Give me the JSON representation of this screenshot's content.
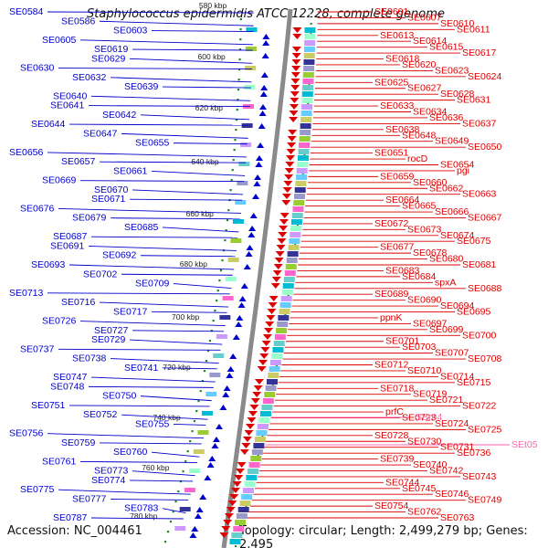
{
  "title": "Staphylococcus epidermidis ATCC 12228, complete genome",
  "accession": "Accession: NC_004461",
  "summary": "Topology: circular; Length: 2,499,279 bp; Genes: 2,495",
  "kbp_labels": [
    "580 kbp",
    "600 kbp",
    "620 kbp",
    "640 kbp",
    "660 kbp",
    "680 kbp",
    "700 kbp",
    "720 kbp",
    "740 kbp",
    "760 kbp",
    "780 kbp"
  ],
  "left_labels": [
    "SE0584",
    "SE0586",
    "SE0603",
    "SE0605",
    "SE0619",
    "SE0629",
    "SE0630",
    "SE0632",
    "SE0639",
    "SE0640",
    "SE0641",
    "SE0642",
    "SE0644",
    "SE0647",
    "SE0655",
    "SE0656",
    "SE0657",
    "SE0661",
    "SE0669",
    "SE0670",
    "SE0671",
    "SE0676",
    "SE0679",
    "SE0685",
    "SE0687",
    "SE0691",
    "SE0692",
    "SE0693",
    "SE0702",
    "SE0709",
    "SE0713",
    "SE0716",
    "SE0717",
    "SE0726",
    "SE0727",
    "SE0729",
    "SE0737",
    "SE0738",
    "SE0741",
    "SE0747",
    "SE0748",
    "SE0750",
    "SE0751",
    "SE0752",
    "SE0755",
    "SE0756",
    "SE0759",
    "SE0760",
    "SE0761",
    "SE0773",
    "SE0774",
    "SE0775",
    "SE0777",
    "SE0783",
    "SE0787"
  ],
  "right_labels": [
    "SE0601",
    "SE0607",
    "SE0610",
    "SE0611",
    "SE0613",
    "SE0614",
    "SE0615",
    "SE0617",
    "SE0618",
    "SE0620",
    "SE0623",
    "SE0624",
    "SE0625",
    "SE0627",
    "SE0628",
    "SE0631",
    "SE0633",
    "SE0634",
    "SE0636",
    "SE0637",
    "SE0638",
    "SE0648",
    "SE0649",
    "SE0650",
    "SE0651",
    "rocD",
    "SE0654",
    "pgi",
    "SE0659",
    "SE0660",
    "SE0662",
    "SE0663",
    "SE0664",
    "SE0665",
    "SE0666",
    "SE0667",
    "SE0672",
    "SE0673",
    "SE0674",
    "SE0675",
    "SE0677",
    "SE0678",
    "SE0680",
    "SE0681",
    "SE0683",
    "SE0684",
    "spxA",
    "SE0688",
    "SE0689",
    "SE0690",
    "SE0694",
    "SE0695",
    "ppnK",
    "SE0697",
    "SE0699",
    "SE0700",
    "SE0701",
    "SE0703",
    "SE0707",
    "SE0708",
    "SE0712",
    "SE0710",
    "SE0714",
    "SE0715",
    "SE0718",
    "SE0719",
    "SE0721",
    "SE0722",
    "prfC",
    "SE0723",
    "SE0724",
    "SE0725",
    "SE0728",
    "SE0730",
    "SE0731",
    "SE0736",
    "SE0739",
    "SE0740",
    "SE0742",
    "SE0743",
    "SE0744",
    "SE0745",
    "SE0746",
    "SE0749",
    "SE0754",
    "SE0762",
    "SE0763"
  ],
  "pink_labels": [
    "SEr04",
    "SEt05"
  ],
  "colors": {
    "negative_strand": "#0000cc",
    "positive_strand": "#dd0000",
    "rna": "#ff66aa",
    "backbone": "#808080",
    "tick": "#228822"
  }
}
